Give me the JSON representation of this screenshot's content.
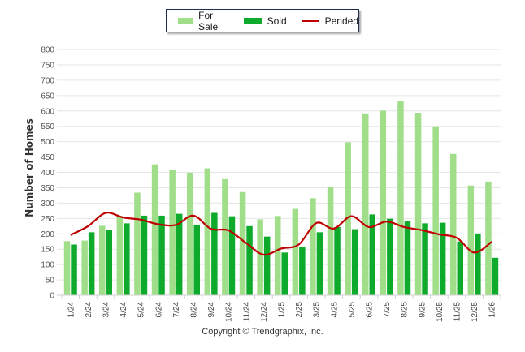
{
  "chart_data": {
    "type": "bar",
    "title": "",
    "xlabel": "",
    "ylabel": "Number of Homes",
    "ylim": [
      0,
      800
    ],
    "yticks": [
      0,
      50,
      100,
      150,
      200,
      250,
      300,
      350,
      400,
      450,
      500,
      550,
      600,
      650,
      700,
      750,
      800
    ],
    "grid": true,
    "legend_position": "top-center",
    "categories": [
      "1/24",
      "2/24",
      "3/24",
      "4/24",
      "5/24",
      "6/24",
      "7/24",
      "8/24",
      "9/24",
      "10/24",
      "11/24",
      "12/24",
      "1/25",
      "2/25",
      "3/25",
      "4/25",
      "5/25",
      "6/25",
      "7/25",
      "8/25",
      "9/25",
      "10/25",
      "11/25",
      "12/25",
      "1/26"
    ],
    "series": [
      {
        "name": "For Sale",
        "type": "bar",
        "color": "#a0de8a",
        "values": [
          176,
          178,
          226,
          257,
          334,
          426,
          407,
          399,
          413,
          378,
          336,
          247,
          258,
          281,
          316,
          353,
          498,
          592,
          601,
          632,
          594,
          550,
          460,
          357,
          370
        ]
      },
      {
        "name": "Sold",
        "type": "bar",
        "color": "#0eaa2c",
        "values": [
          165,
          205,
          213,
          234,
          259,
          259,
          265,
          230,
          268,
          257,
          225,
          191,
          139,
          157,
          205,
          222,
          215,
          263,
          249,
          242,
          234,
          236,
          175,
          201,
          122
        ]
      },
      {
        "name": "Pended",
        "type": "line",
        "color": "#c00000",
        "values": [
          196,
          225,
          268,
          253,
          246,
          231,
          229,
          259,
          216,
          211,
          170,
          132,
          152,
          165,
          235,
          217,
          257,
          222,
          240,
          222,
          212,
          198,
          187,
          139,
          174
        ]
      }
    ]
  },
  "legend": {
    "items": [
      {
        "label": "For Sale",
        "color": "#a0de8a"
      },
      {
        "label": "Sold",
        "color": "#0eaa2c"
      },
      {
        "label": "Pended",
        "color": "#c00000"
      }
    ]
  },
  "footer": {
    "copyright": "Copyright © Trendgraphix, Inc."
  }
}
